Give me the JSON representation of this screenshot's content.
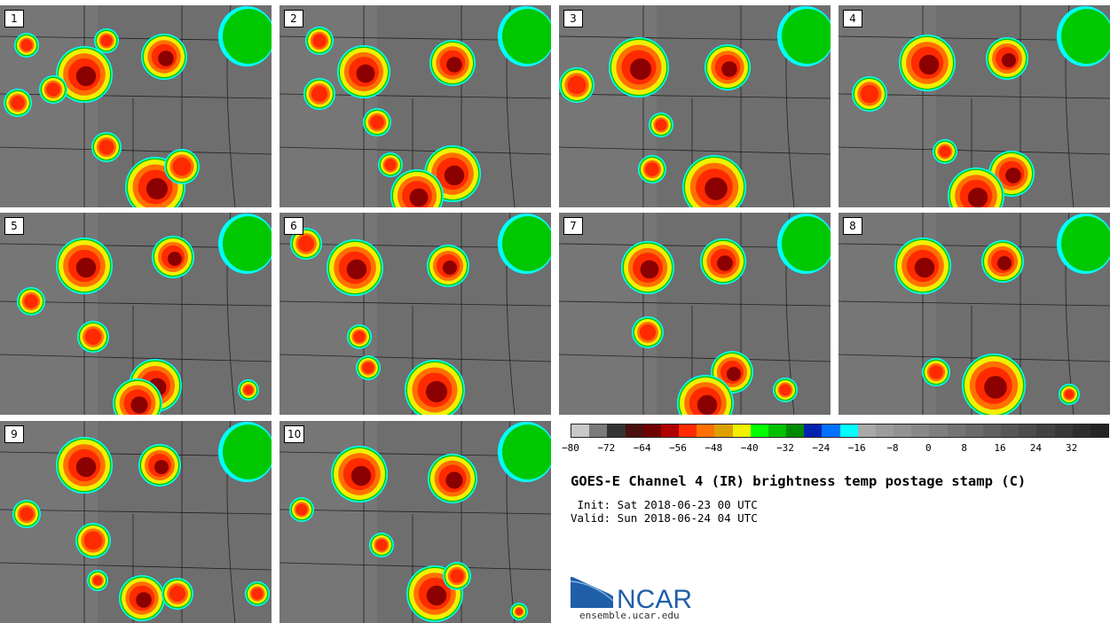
{
  "panels": [
    {
      "label": "1"
    },
    {
      "label": "2"
    },
    {
      "label": "3"
    },
    {
      "label": "4"
    },
    {
      "label": "5"
    },
    {
      "label": "6"
    },
    {
      "label": "7"
    },
    {
      "label": "8"
    },
    {
      "label": "9"
    },
    {
      "label": "10"
    }
  ],
  "title": "GOES-E Channel 4 (IR) brightness temp postage stamp (C)",
  "init_text": " Init: Sat 2018-06-23 00 UTC",
  "valid_text": "Valid: Sun 2018-06-24 04 UTC",
  "colorbar": {
    "colors": [
      "#c8c8c8",
      "#7a7a7a",
      "#333333",
      "#4a1010",
      "#6e0000",
      "#b00000",
      "#ff2a00",
      "#ff7000",
      "#dca000",
      "#f0f000",
      "#00ff00",
      "#00c000",
      "#008a00",
      "#0022b0",
      "#0070ff",
      "#00ffff",
      "#a8a8a8",
      "#9c9c9c",
      "#929292",
      "#888888",
      "#7e7e7e",
      "#747474",
      "#6a6a6a",
      "#606060",
      "#565656",
      "#4c4c4c",
      "#424242",
      "#383838",
      "#2e2e2e",
      "#242424"
    ],
    "ticks": [
      "−80",
      "−72",
      "−64",
      "−56",
      "−48",
      "−40",
      "−32",
      "−24",
      "−16",
      "−8",
      "0",
      "8",
      "16",
      "24",
      "32"
    ]
  },
  "logo": {
    "text": "NCAR",
    "url": "ensemble.ucar.edu"
  },
  "colors": {
    "cloud_outer": "#00ffff",
    "cloud_green": "#00c800",
    "cloud_yellow": "#f0f000",
    "cloud_orange": "#ff7000",
    "cloud_red": "#ff2a00",
    "cloud_core": "#8b0000",
    "ground": "#6e6e6e",
    "ncar_blue": "#1f5fa8"
  }
}
